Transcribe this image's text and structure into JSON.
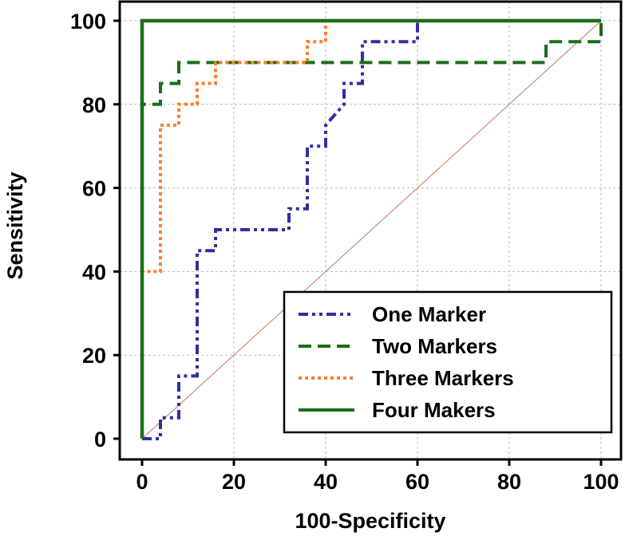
{
  "chart_data": {
    "type": "line",
    "title": "",
    "xlabel": "100-Specificity",
    "ylabel": "Sensitivity",
    "xlim": [
      0,
      100
    ],
    "ylim": [
      0,
      100
    ],
    "xticks": [
      0,
      20,
      40,
      60,
      80,
      100
    ],
    "yticks": [
      0,
      20,
      40,
      60,
      80,
      100
    ],
    "grid": true,
    "legend": "bottom-right",
    "reference_line": {
      "x": [
        0,
        100
      ],
      "y": [
        0,
        100
      ],
      "color": "#d08a7a"
    },
    "series": [
      {
        "name": "One Marker",
        "color": "#3030a0",
        "style": "dash-dot-dot",
        "x": [
          0,
          0,
          4,
          4,
          8,
          8,
          12,
          12,
          16,
          16,
          32,
          32,
          36,
          36,
          40,
          40,
          44,
          44,
          48,
          48,
          60,
          60
        ],
        "y": [
          0,
          0,
          0,
          5,
          5,
          15,
          15,
          45,
          45,
          50,
          50,
          55,
          55,
          70,
          70,
          75,
          80,
          85,
          85,
          95,
          95,
          100
        ]
      },
      {
        "name": "Two Markers",
        "color": "#1a6e1a",
        "style": "dashed",
        "x": [
          0,
          0,
          4,
          4,
          8,
          8,
          88,
          88,
          100,
          100
        ],
        "y": [
          0,
          80,
          80,
          85,
          85,
          90,
          90,
          95,
          95,
          100
        ]
      },
      {
        "name": "Three Markers",
        "color": "#ff7f27",
        "style": "dotted",
        "x": [
          0,
          0,
          4,
          4,
          8,
          8,
          12,
          12,
          16,
          16,
          36,
          36,
          40,
          40
        ],
        "y": [
          0,
          40,
          40,
          75,
          75,
          80,
          80,
          85,
          85,
          90,
          90,
          95,
          95,
          100
        ]
      },
      {
        "name": "Four Makers",
        "color": "#1a6e1a",
        "style": "solid",
        "x": [
          0,
          0,
          100
        ],
        "y": [
          0,
          100,
          100
        ]
      }
    ]
  }
}
